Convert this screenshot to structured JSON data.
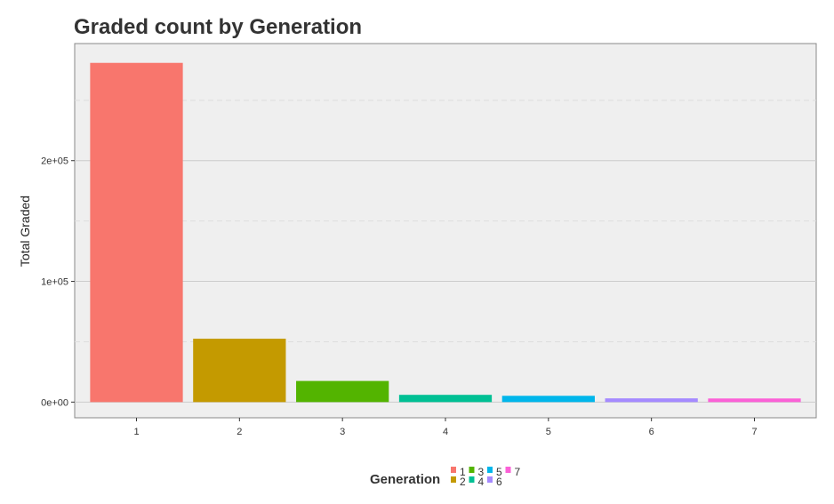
{
  "chart_data": {
    "type": "bar",
    "title": "Graded count by Generation",
    "xlabel": "",
    "ylabel": "Total Graded",
    "categories": [
      "1",
      "2",
      "3",
      "4",
      "5",
      "6",
      "7"
    ],
    "values": [
      281000,
      52500,
      17500,
      6000,
      5200,
      3100,
      3000
    ],
    "ylim": [
      -13000,
      297000
    ],
    "yticks": [
      0,
      100000,
      200000
    ],
    "ytick_labels": [
      "0e+00",
      "1e+05",
      "2e+05"
    ],
    "grid": true,
    "colors": [
      "#F8766D",
      "#C49A00",
      "#53B400",
      "#00C094",
      "#00B6EB",
      "#A58AFF",
      "#FB61D7"
    ],
    "legend": {
      "title": "Generation",
      "placement": "bottom",
      "entries": [
        "1",
        "2",
        "3",
        "4",
        "5",
        "6",
        "7"
      ]
    }
  }
}
